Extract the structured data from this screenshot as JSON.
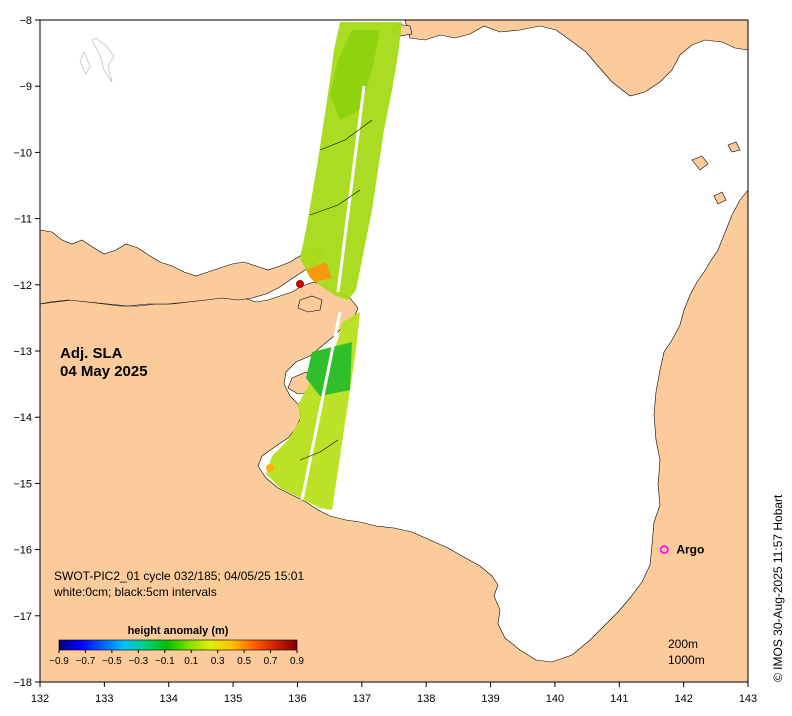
{
  "map": {
    "title_line1": "Adj. SLA",
    "title_line2": "04 May 2025",
    "info_line1": "SWOT-PIC2_01 cycle 032/185; 04/05/25 15:01",
    "info_line2": "white:0cm; black:5cm intervals",
    "credit": "© IMOS 30-Aug-2025 11:57 Hobart",
    "depth_legend": [
      "200m",
      "1000m"
    ],
    "marker": {
      "label": "Argo",
      "lon": 141.7,
      "lat": -16.0,
      "color": "#ff00ff"
    },
    "x_axis": {
      "min": 132,
      "max": 143,
      "ticks": [
        "132",
        "133",
        "134",
        "135",
        "136",
        "137",
        "138",
        "139",
        "140",
        "141",
        "142",
        "143"
      ]
    },
    "y_axis": {
      "min": -18,
      "max": -8,
      "ticks": [
        "−8",
        "−9",
        "−10",
        "−11",
        "−12",
        "−13",
        "−14",
        "−15",
        "−16",
        "−17",
        "−18"
      ]
    },
    "colors": {
      "land": "#fbcb9b",
      "sea": "#ffffff"
    }
  },
  "colorbar": {
    "title": "height anomaly (m)",
    "ticks": [
      "−0.9",
      "−0.7",
      "−0.5",
      "−0.3",
      "−0.1",
      "0.1",
      "0.3",
      "0.5",
      "0.7",
      "0.9"
    ],
    "range": [
      -0.9,
      0.9
    ],
    "palette": [
      "#00007f",
      "#0000ff",
      "#0060ff",
      "#00c0ff",
      "#00d080",
      "#00c000",
      "#80e000",
      "#e0f000",
      "#ffc000",
      "#ff6000",
      "#d02000",
      "#800000"
    ]
  }
}
